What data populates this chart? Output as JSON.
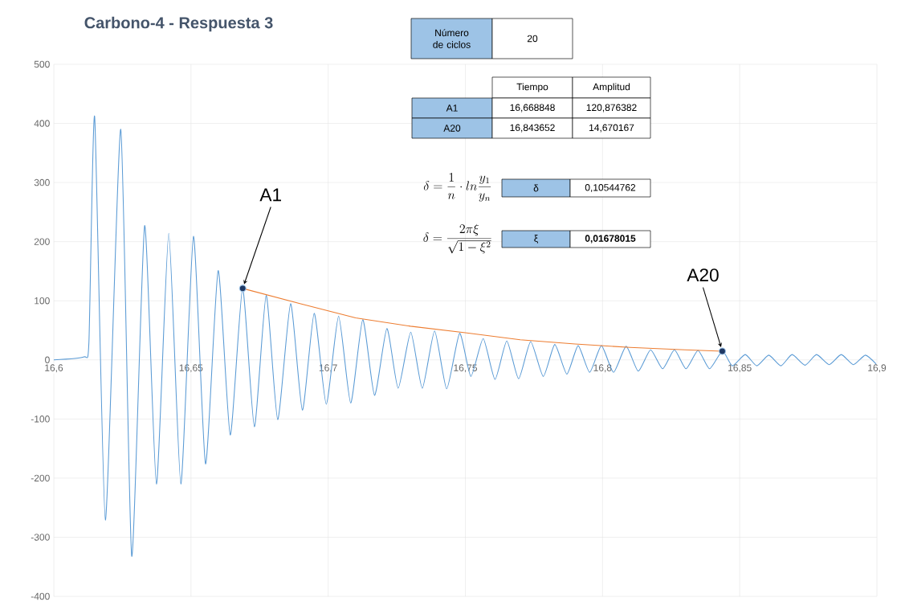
{
  "chart_data": {
    "type": "line",
    "title": "Carbono-4 - Respuesta 3",
    "xlim": [
      16.6,
      16.9
    ],
    "ylim": [
      -400,
      500
    ],
    "xticks": [
      {
        "value": 16.6,
        "label": "16,6"
      },
      {
        "value": 16.65,
        "label": "16,65"
      },
      {
        "value": 16.7,
        "label": "16,7"
      },
      {
        "value": 16.75,
        "label": "16,75"
      },
      {
        "value": 16.8,
        "label": "16,8"
      },
      {
        "value": 16.85,
        "label": "16,85"
      },
      {
        "value": 16.9,
        "label": "16,9"
      }
    ],
    "yticks": [
      -400,
      -300,
      -200,
      -100,
      0,
      100,
      200,
      300,
      400,
      500
    ],
    "grid": true,
    "series": [
      {
        "color": "#5b9bd5",
        "x": [
          16.6,
          16.611,
          16.6128,
          16.6149,
          16.6188,
          16.6244,
          16.6284,
          16.6331,
          16.6374,
          16.6419,
          16.6463,
          16.6509,
          16.6553,
          16.6599,
          16.6643,
          16.6688,
          16.6731,
          16.6774,
          16.6816,
          16.6863,
          16.6906,
          16.6949,
          16.6993,
          16.7038,
          16.7082,
          16.7126,
          16.7169,
          16.7214,
          16.7255,
          16.7301,
          16.7343,
          16.7388,
          16.7432,
          16.7479,
          16.752,
          16.7565,
          16.7608,
          16.7651,
          16.7694,
          16.7738,
          16.7784,
          16.7826,
          16.787,
          16.7911,
          16.7953,
          16.7996,
          16.804,
          16.8086,
          16.813,
          16.8175,
          16.8219,
          16.8262,
          16.8304,
          16.8348,
          16.839,
          16.8437,
          16.8473,
          16.852,
          16.8562,
          16.8606,
          16.865,
          16.8691,
          16.8738,
          16.878,
          16.8826,
          16.887,
          16.8914,
          16.8958,
          16.8997
        ],
        "values": [
          0,
          5,
          30,
          411,
          -271,
          390,
          -332,
          227,
          -210,
          214,
          -210,
          209,
          -176,
          151,
          -127,
          121,
          -113,
          109,
          -101,
          95,
          -85,
          79,
          -75,
          74,
          -73,
          68,
          -60,
          53,
          -48,
          47,
          -48,
          49,
          -49,
          45,
          -28,
          36,
          -33,
          32,
          -32,
          31,
          -28,
          26,
          -24,
          24,
          -21,
          24,
          -21,
          23,
          -19,
          17,
          -15,
          17,
          -15,
          16,
          -15,
          15,
          -10,
          9,
          -10,
          8,
          -10,
          9,
          -9,
          9,
          -8,
          9,
          -8,
          8,
          -7
        ]
      },
      {
        "type": "line",
        "color": "#ed7d31",
        "x": [
          16.668848,
          16.69,
          16.71,
          16.73,
          16.75,
          16.77,
          16.79,
          16.81,
          16.83,
          16.843652
        ],
        "values": [
          120.876382,
          95,
          71,
          57,
          46,
          34,
          27,
          21,
          17,
          14.670167
        ]
      },
      {
        "type": "scatter",
        "color": "#1f3864",
        "x": [
          16.668848,
          16.843652
        ],
        "values": [
          120.876382,
          14.670167
        ]
      }
    ],
    "annotations": [
      {
        "text": "A1",
        "x": 16.668848,
        "y": 120.876382
      },
      {
        "text": "A20",
        "x": 16.843652,
        "y": 14.670167
      },
      "Número de ciclos",
      "20",
      "Tiempo",
      "Amplitud",
      "A1",
      "16,668848",
      "120,876382",
      "A20",
      "16,843652",
      "14,670167",
      "\\delta = \\frac{1}{n}\\cdot ln\\frac{y_1}{y_n}",
      "δ",
      "0,10544762",
      "\\delta = \\frac{2\\pi\\xi}{\\sqrt{1-\\xi^2}}",
      "ξ",
      "0,01678015"
    ]
  }
}
